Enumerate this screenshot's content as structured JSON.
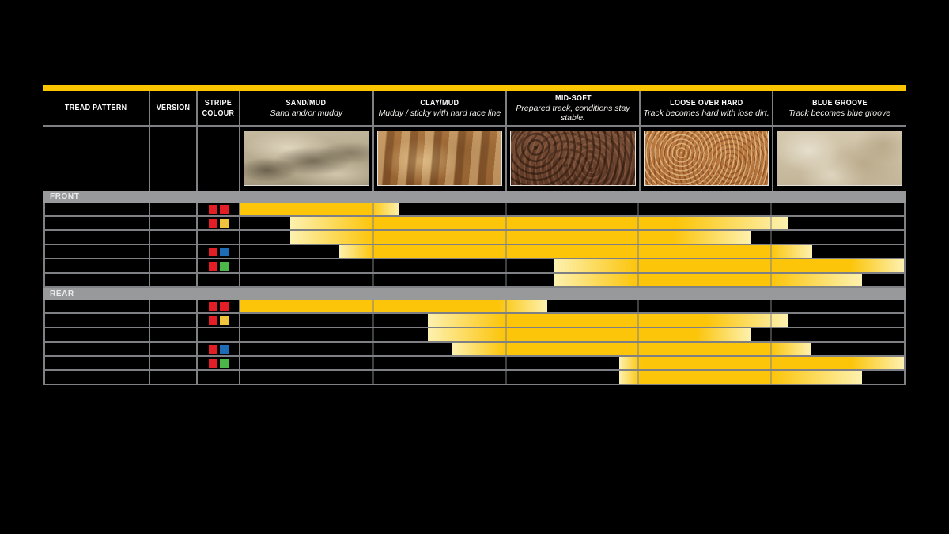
{
  "page": {
    "background": "#000000",
    "accent_bar_color": "#fdc500"
  },
  "table": {
    "columns": [
      {
        "title": "TREAD PATTERN",
        "subtitle": ""
      },
      {
        "title": "VERSION",
        "subtitle": ""
      },
      {
        "title": "STRIPE COLOUR",
        "subtitle": ""
      },
      {
        "title": "SAND/MUD",
        "subtitle": "Sand and/or muddy"
      },
      {
        "title": "CLAY/MUD",
        "subtitle": "Muddy / sticky with hard race line"
      },
      {
        "title": "MID-SOFT",
        "subtitle": "Prepared track, conditions stay stable."
      },
      {
        "title": "LOOSE OVER HARD",
        "subtitle": "Track becomes hard with lose dirt."
      },
      {
        "title": "BLUE GROOVE",
        "subtitle": "Track becomes blue groove"
      }
    ]
  },
  "stripe_colors": {
    "red": "#e41e26",
    "yellow": "#f0c43c",
    "blue": "#1e6cb5",
    "green": "#4cb649"
  },
  "bar_colors": {
    "solid": "#fcc50a",
    "pale": "#fdf1b0"
  },
  "chart_data": {
    "type": "bar",
    "title": "Tyre tread pattern terrain suitability",
    "x_axis_terrains": [
      "SAND/MUD",
      "CLAY/MUD",
      "MID-SOFT",
      "LOOSE OVER HARD",
      "BLUE GROOVE"
    ],
    "units": "percent of terrain axis: 0 = left edge of SAND/MUD, 100 = right edge of BLUE GROOVE, each terrain spans 20",
    "sections": [
      {
        "label": "FRONT",
        "rows": [
          {
            "stripes": [
              "red",
              "red"
            ],
            "bar": {
              "start": 0,
              "solid_from": 0,
              "solid_to": 19.6,
              "end": 23.9
            }
          },
          {
            "stripes": [
              "red",
              "yellow"
            ],
            "bar": {
              "start": 7.5,
              "solid_from": 20.0,
              "solid_to": 65.8,
              "end": 82.5
            }
          },
          {
            "stripes": [],
            "bar": {
              "start": 7.5,
              "solid_from": 20.0,
              "solid_to": 65.2,
              "end": 77.0
            }
          },
          {
            "stripes": [
              "red",
              "blue"
            ],
            "bar": {
              "start": 14.9,
              "solid_from": 20.0,
              "solid_to": 79.9,
              "end": 86.2
            }
          },
          {
            "stripes": [
              "red",
              "green"
            ],
            "bar": {
              "start": 47.2,
              "solid_from": 59.9,
              "solid_to": 92.0,
              "end": 100
            }
          },
          {
            "stripes": [],
            "bar": {
              "start": 47.2,
              "solid_from": 59.9,
              "solid_to": 80.0,
              "end": 93.7
            }
          }
        ]
      },
      {
        "label": "REAR",
        "rows": [
          {
            "stripes": [
              "red",
              "red"
            ],
            "bar": {
              "start": 0,
              "solid_from": 0,
              "solid_to": 39.0,
              "end": 46.3
            }
          },
          {
            "stripes": [
              "red",
              "yellow"
            ],
            "bar": {
              "start": 28.3,
              "solid_from": 39.8,
              "solid_to": 70.3,
              "end": 82.5
            }
          },
          {
            "stripes": [],
            "bar": {
              "start": 28.3,
              "solid_from": 39.8,
              "solid_to": 68.7,
              "end": 77.0
            }
          },
          {
            "stripes": [
              "red",
              "blue"
            ],
            "bar": {
              "start": 31.9,
              "solid_from": 39.8,
              "solid_to": 79.9,
              "end": 86.0
            }
          },
          {
            "stripes": [
              "red",
              "green"
            ],
            "bar": {
              "start": 57.1,
              "solid_from": 60.3,
              "solid_to": 92.0,
              "end": 100
            }
          },
          {
            "stripes": [],
            "bar": {
              "start": 57.1,
              "solid_from": 60.3,
              "solid_to": 80.0,
              "end": 93.7
            }
          }
        ]
      }
    ]
  }
}
